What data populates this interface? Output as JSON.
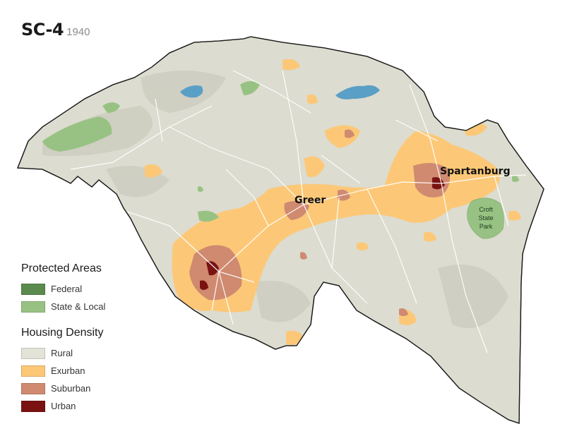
{
  "map": {
    "title": "SC-4",
    "year": "1940",
    "cities": [
      {
        "name": "Spartanburg"
      },
      {
        "name": "Greer"
      }
    ],
    "park": {
      "lines": [
        "Croft",
        "State",
        "Park"
      ]
    }
  },
  "legend": {
    "protected": {
      "heading": "Protected Areas",
      "items": [
        {
          "label": "Federal",
          "color": "#5a8a4e"
        },
        {
          "label": "State & Local",
          "color": "#98c283"
        }
      ]
    },
    "housing": {
      "heading": "Housing Density",
      "items": [
        {
          "label": "Rural",
          "color": "#e3e3d7"
        },
        {
          "label": "Exurban",
          "color": "#fcc877"
        },
        {
          "label": "Suburban",
          "color": "#cf8a70"
        },
        {
          "label": "Urban",
          "color": "#7a1212"
        }
      ]
    }
  },
  "colors": {
    "land": "#dcdcd0",
    "water": "#5a9fc6",
    "roads": "#ffffff",
    "border": "#1a1a1a"
  }
}
